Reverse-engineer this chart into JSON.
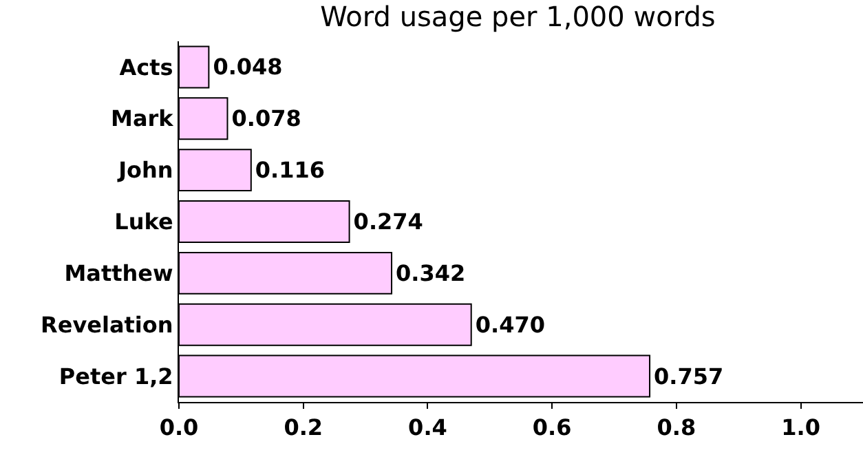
{
  "chart_data": {
    "type": "bar",
    "orientation": "horizontal",
    "title": "Word usage per 1,000 words",
    "categories": [
      "Acts",
      "Mark",
      "John",
      "Luke",
      "Matthew",
      "Revelation",
      "Peter 1,2"
    ],
    "values": [
      0.048,
      0.078,
      0.116,
      0.274,
      0.342,
      0.47,
      0.757
    ],
    "value_labels": [
      "0.048",
      "0.078",
      "0.116",
      "0.274",
      "0.342",
      "0.470",
      "0.757"
    ],
    "color": "#ffccff",
    "xlim": [
      0,
      1.1
    ],
    "xticks": [
      {
        "value": 0,
        "label": "0.0"
      },
      0.2,
      0.4,
      0.6,
      0.8,
      {
        "value": 1,
        "label": "1.0"
      }
    ],
    "grid": false
  }
}
